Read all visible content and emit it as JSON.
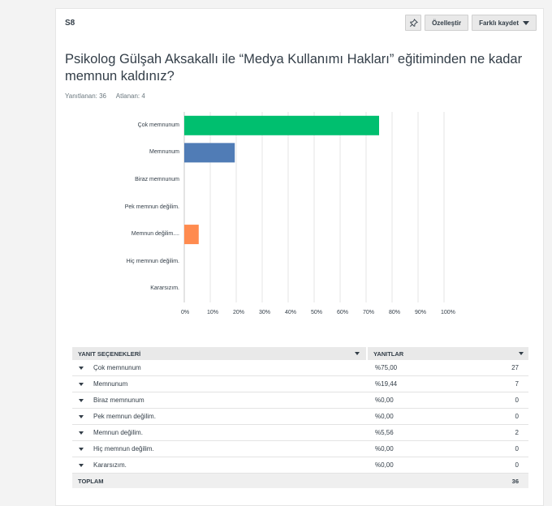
{
  "question": {
    "number": "S8",
    "title": "Psikolog Gülşah Aksakallı ile “Medya Kullanımı Hakları” eğitiminden ne kadar memnun kaldınız?",
    "answered": "Yanıtlanan: 36",
    "skipped": "Atlanan: 4"
  },
  "toolbar": {
    "pin_icon": "pin-icon",
    "customize_label": "Özelleştir",
    "save_as_label": "Farklı kaydet"
  },
  "chart_data": {
    "type": "bar",
    "orientation": "horizontal",
    "categories": [
      "Çok memnunum",
      "Memnunum",
      "Biraz memnunum",
      "Pek memnun değilim.",
      "Memnun değilim....",
      "Hiç memnun değilim.",
      "Kararsızım."
    ],
    "values": [
      75.0,
      19.44,
      0,
      0,
      5.56,
      0,
      0
    ],
    "colors": [
      "#00bf6f",
      "#507cb6",
      "#f9be00",
      "#6bc8cd",
      "#ff8b4f",
      "#7f7fff",
      "#ff5a9d"
    ],
    "xticks": [
      "0%",
      "10%",
      "20%",
      "30%",
      "40%",
      "50%",
      "60%",
      "70%",
      "80%",
      "90%",
      "100%"
    ],
    "xlim": [
      0,
      100
    ],
    "grid": true
  },
  "table": {
    "header_choices": "YANIT SEÇENEKLERİ",
    "header_responses": "YANITLAR",
    "rows": [
      {
        "label": "Çok memnunum",
        "percent": "%75,00",
        "count": "27"
      },
      {
        "label": "Memnunum",
        "percent": "%19,44",
        "count": "7"
      },
      {
        "label": "Biraz memnunum",
        "percent": "%0,00",
        "count": "0"
      },
      {
        "label": "Pek memnun değilim.",
        "percent": "%0,00",
        "count": "0"
      },
      {
        "label": "Memnun değilim.",
        "percent": "%5,56",
        "count": "2"
      },
      {
        "label": "Hiç memnun değilim.",
        "percent": "%0,00",
        "count": "0"
      },
      {
        "label": "Kararsızım.",
        "percent": "%0,00",
        "count": "0"
      }
    ],
    "total_label": "TOPLAM",
    "total_count": "36"
  }
}
